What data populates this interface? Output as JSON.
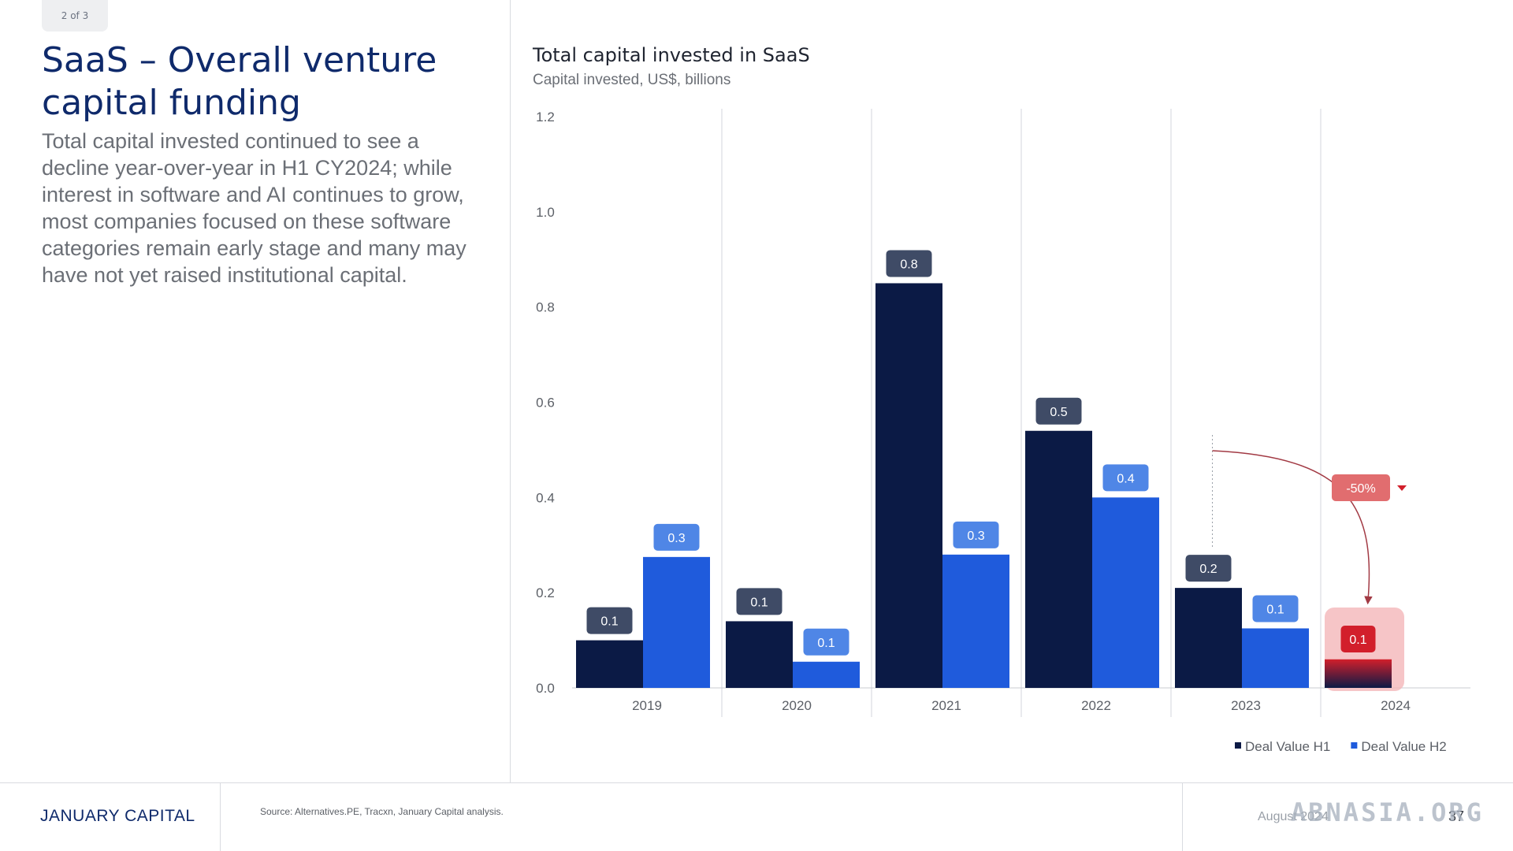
{
  "page": {
    "badge": "2 of 3",
    "title": "SaaS – Overall venture capital funding",
    "body": "Total capital invested continued to see a decline year-over-year in H1 CY2024; while interest in software and AI continues to grow, most companies focused on these software categories remain early stage and many may have not yet raised institutional capital."
  },
  "footer": {
    "logo": "JANUARY CAPITAL",
    "source": "Source: Alternatives.PE, Tracxn, January Capital analysis.",
    "date": "August 2024",
    "page_number": "37"
  },
  "watermark": "ABNASIA.ORG",
  "colors": {
    "h1": "#0b1a45",
    "h2": "#1f5bdc",
    "h1_label": "#3f4b66",
    "h2_label": "#4f86e6",
    "highlight": "#f4b7b9",
    "alert": "#e16d6f",
    "alert_dark": "#d21f2b",
    "title": "#0f2a6b"
  },
  "chart_data": {
    "type": "bar",
    "title": "Total capital invested in SaaS",
    "subtitle": "Capital invested, US$, billions",
    "categories": [
      "2019",
      "2020",
      "2021",
      "2022",
      "2023",
      "2024"
    ],
    "series": [
      {
        "name": "Deal Value H1",
        "values": [
          0.1,
          0.14,
          0.85,
          0.54,
          0.21,
          0.06
        ],
        "labels": [
          "0.1",
          "0.1",
          "0.8",
          "0.5",
          "0.2",
          "0.1"
        ]
      },
      {
        "name": "Deal Value H2",
        "values": [
          0.275,
          0.055,
          0.28,
          0.4,
          0.125,
          null
        ],
        "labels": [
          "0.3",
          "0.1",
          "0.3",
          "0.4",
          "0.1",
          ""
        ]
      }
    ],
    "yticks": [
      "0.0",
      "0.2",
      "0.4",
      "0.6",
      "0.8",
      "1.0",
      "1.2"
    ],
    "ylim": [
      0,
      1.2
    ],
    "grid": false,
    "legend_position": "bottom-right",
    "annotation": {
      "text": "-50%",
      "from_category": "2023",
      "to_category": "2024"
    }
  }
}
